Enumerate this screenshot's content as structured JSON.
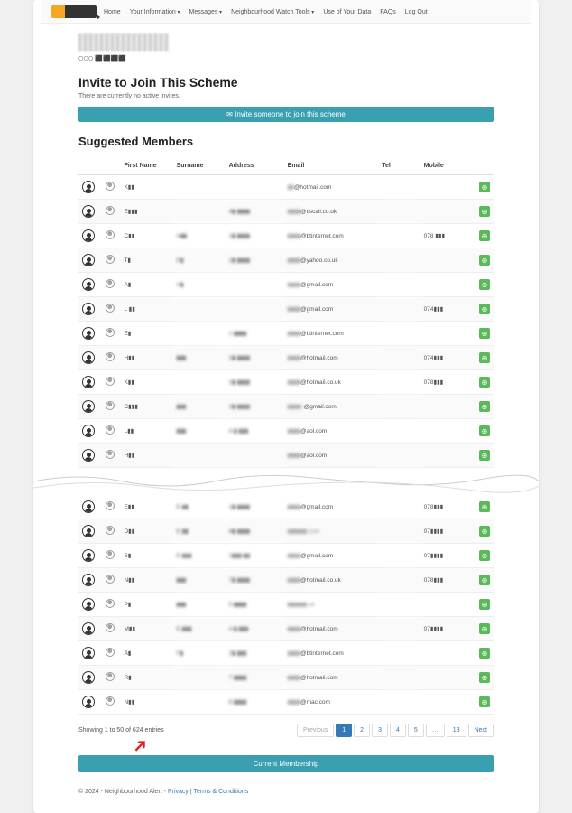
{
  "nav": {
    "items": [
      "Home",
      "Your Information",
      "Messages",
      "Neighbourhood Watch Tools",
      "Use of Your Data",
      "FAQs",
      "Log Out"
    ],
    "dropdown_indices": [
      1,
      2,
      3
    ]
  },
  "top": {
    "ooo": "OOO ⬛⬛⬛⬛"
  },
  "invite": {
    "title": "Invite to Join This Scheme",
    "sub": "There are currently no active invites.",
    "banner": "✉ Invite someone to join this scheme"
  },
  "suggested": {
    "title": "Suggested Members",
    "columns": [
      "",
      "",
      "First Name",
      "Surname",
      "Address",
      "Email",
      "Tel",
      "Mobile",
      ""
    ],
    "rows_top": [
      {
        "fn": "K▮▮",
        "sn": "",
        "addr": "",
        "email": "▮▮@hotmail.com",
        "tel": "",
        "mob": ""
      },
      {
        "fn": "E▮▮▮",
        "sn": "",
        "addr": "4▮ ▮▮▮▮",
        "email": "▮▮▮▮@tiscali.co.uk",
        "tel": "",
        "mob": ""
      },
      {
        "fn": "C▮▮",
        "sn": "A▮▮",
        "addr": "1▮ ▮▮▮▮",
        "email": "▮▮▮▮@btinternet.com",
        "tel": "",
        "mob": "078 ▮▮▮"
      },
      {
        "fn": "T▮",
        "sn": "E▮",
        "addr": "2▮ ▮▮▮▮",
        "email": "▮▮▮▮@yahoo.co.uk",
        "tel": "",
        "mob": ""
      },
      {
        "fn": "A▮",
        "sn": "A▮",
        "addr": "",
        "email": "▮▮▮▮@gmail.com",
        "tel": "",
        "mob": ""
      },
      {
        "fn": "L ▮▮",
        "sn": "",
        "addr": "",
        "email": "▮▮▮▮@gmail.com",
        "tel": "",
        "mob": "074▮▮▮"
      },
      {
        "fn": "E▮",
        "sn": "",
        "addr": "1 ▮▮▮▮",
        "email": "▮▮▮▮@btinternet.com",
        "tel": "",
        "mob": ""
      },
      {
        "fn": "H▮▮",
        "sn": "▮▮▮",
        "addr": "2▮ ▮▮▮▮",
        "email": "▮▮▮▮@hotmail.com",
        "tel": "",
        "mob": "074▮▮▮"
      },
      {
        "fn": "K▮▮",
        "sn": "",
        "addr": "1▮ ▮▮▮▮",
        "email": "▮▮▮▮@hotmail.co.uk",
        "tel": "",
        "mob": "078▮▮▮"
      },
      {
        "fn": "C▮▮▮",
        "sn": "▮▮▮",
        "addr": "2▮ ▮▮▮▮",
        "email": "▮▮▮▮1@gmail.com",
        "tel": "",
        "mob": ""
      },
      {
        "fn": "L▮▮",
        "sn": "▮▮▮",
        "addr": "4 ▮ ▮▮▮",
        "email": "▮▮▮▮@aol.com",
        "tel": "",
        "mob": ""
      },
      {
        "fn": "H▮▮",
        "sn": "",
        "addr": "",
        "email": "▮▮▮▮@aol.com",
        "tel": "",
        "mob": ""
      }
    ],
    "rows_bottom": [
      {
        "fn": "E▮▮",
        "sn": "E ▮▮",
        "addr": "1▮ ▮▮▮▮",
        "email": "▮▮▮▮@gmail.com",
        "tel": "",
        "mob": "078▮▮▮"
      },
      {
        "fn": "D▮▮",
        "sn": "E ▮▮",
        "addr": "8▮ ▮▮▮▮",
        "email": "▮▮▮▮▮▮.com",
        "tel": "",
        "mob": "07▮▮▮▮"
      },
      {
        "fn": "S▮",
        "sn": "E ▮▮▮",
        "addr": "2▮▮▮ ▮▮",
        "email": "▮▮▮▮@gmail.com",
        "tel": "",
        "mob": "07▮▮▮▮"
      },
      {
        "fn": "N▮▮",
        "sn": "▮▮▮",
        "addr": "7▮ ▮▮▮▮",
        "email": "▮▮▮▮@hotmail.co.uk",
        "tel": "",
        "mob": "078▮▮▮"
      },
      {
        "fn": "P▮",
        "sn": "▮▮▮",
        "addr": "5 ▮▮▮▮",
        "email": "▮▮▮▮▮▮.uk",
        "tel": "",
        "mob": ""
      },
      {
        "fn": "M▮▮",
        "sn": "E ▮▮▮",
        "addr": "4 ▮ ▮▮▮",
        "email": "▮▮▮▮@hotmail.com",
        "tel": "",
        "mob": "07▮▮▮▮"
      },
      {
        "fn": "A▮",
        "sn": "F▮",
        "addr": "2▮ ▮▮▮",
        "email": "▮▮▮▮@btinternet.com",
        "tel": "",
        "mob": ""
      },
      {
        "fn": "R▮",
        "sn": "",
        "addr": "7 ▮▮▮▮",
        "email": "▮▮▮▮@hotmail.com",
        "tel": "",
        "mob": ""
      },
      {
        "fn": "N▮▮",
        "sn": "",
        "addr": "8 ▮▮▮▮",
        "email": "▮▮▮▮@mac.com",
        "tel": "",
        "mob": ""
      }
    ]
  },
  "pager": {
    "showing": "Showing 1 to 50 of 624 entries",
    "prev": "Previous",
    "next": "Next",
    "pages": [
      "1",
      "2",
      "3",
      "4",
      "5",
      "…",
      "13"
    ],
    "active": 0
  },
  "membership": {
    "label": "Current Membership"
  },
  "legal": {
    "copyright": "© 2024 - Neighbourhood Alert - ",
    "privacy": "Privacy",
    "sep": " | ",
    "terms": "Terms & Conditions"
  },
  "colors": {
    "accent": "#3a9fb0",
    "green": "#5cb85c",
    "link": "#337ab7",
    "arrow": "#e02020"
  }
}
